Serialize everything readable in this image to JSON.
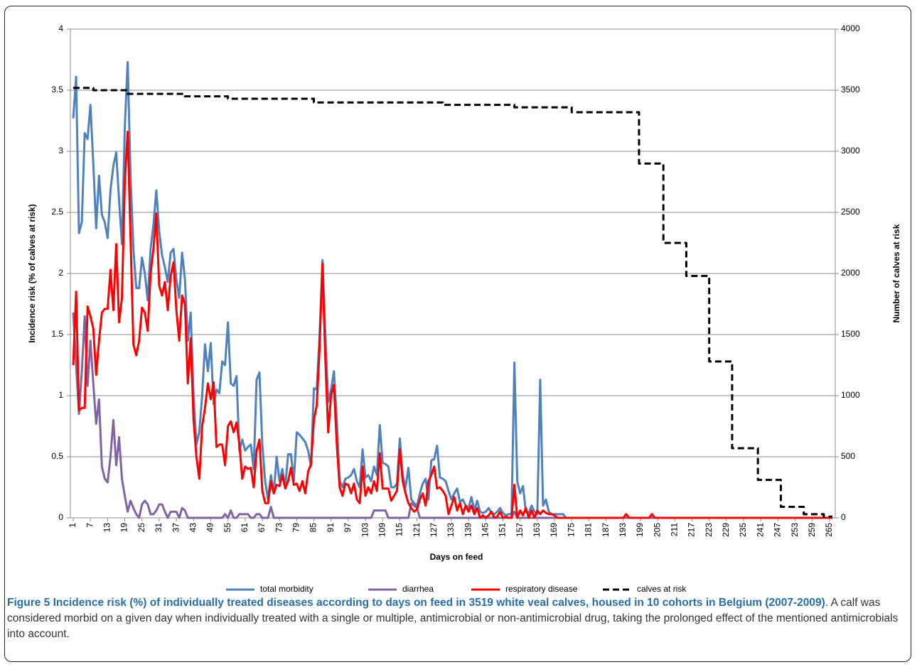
{
  "chart_data": {
    "type": "line",
    "x_label": "Days on feed",
    "y_label": "Incidence risk (% of calves at risk)",
    "y2_label": "Number of calves at risk",
    "xlim": [
      0,
      267
    ],
    "xticks": [
      1,
      7,
      13,
      19,
      25,
      31,
      37,
      43,
      49,
      55,
      61,
      67,
      73,
      79,
      85,
      91,
      97,
      103,
      109,
      115,
      121,
      127,
      133,
      139,
      145,
      151,
      157,
      163,
      169,
      175,
      181,
      187,
      193,
      199,
      205,
      211,
      217,
      223,
      229,
      235,
      241,
      247,
      253,
      259,
      265
    ],
    "ylim": [
      0,
      4
    ],
    "yticks": [
      0,
      0.5,
      1,
      1.5,
      2,
      2.5,
      3,
      3.5,
      4
    ],
    "y2lim": [
      0,
      4000
    ],
    "y2ticks": [
      0,
      500,
      1000,
      1500,
      2000,
      2500,
      3000,
      3500,
      4000
    ],
    "grid": true,
    "legend": "bottom",
    "series": [
      {
        "name": "total morbidity",
        "color": "#4f81bd",
        "x": [
          1,
          2,
          3,
          4,
          5,
          6,
          7,
          8,
          9,
          10,
          11,
          12,
          13,
          14,
          15,
          16,
          17,
          18,
          19,
          20,
          21,
          22,
          23,
          24,
          25,
          26,
          27,
          28,
          29,
          30,
          31,
          32,
          33,
          34,
          35,
          36,
          37,
          38,
          39,
          40,
          41,
          42,
          43,
          44,
          45,
          46,
          47,
          48,
          49,
          50,
          51,
          52,
          53,
          54,
          55,
          56,
          57,
          58,
          59,
          60,
          61,
          62,
          63,
          64,
          65,
          66,
          67,
          68,
          69,
          70,
          71,
          72,
          73,
          74,
          75,
          76,
          77,
          78,
          79,
          80,
          81,
          82,
          83,
          84,
          85,
          86,
          87,
          88,
          89,
          90,
          91,
          92,
          93,
          94,
          95,
          96,
          97,
          98,
          99,
          100,
          101,
          102,
          103,
          104,
          105,
          106,
          107,
          108,
          109,
          110,
          111,
          112,
          113,
          114,
          115,
          116,
          117,
          118,
          119,
          120,
          121,
          122,
          123,
          124,
          125,
          126,
          127,
          128,
          129,
          130,
          131,
          132,
          133,
          134,
          135,
          136,
          137,
          138,
          139,
          140,
          141,
          142,
          143,
          144,
          145,
          146,
          147,
          148,
          149,
          150,
          151,
          152,
          153,
          154,
          155,
          156,
          157,
          158,
          159,
          160,
          161,
          162,
          163,
          164,
          165,
          166,
          167,
          168,
          169,
          170,
          171,
          172,
          173,
          174,
          266
        ],
        "values": [
          3.27,
          3.61,
          2.33,
          2.42,
          3.15,
          3.1,
          3.38,
          2.9,
          2.37,
          2.8,
          2.48,
          2.42,
          2.29,
          2.68,
          2.88,
          2.99,
          2.6,
          2.24,
          3.2,
          3.73,
          2.8,
          2.2,
          1.88,
          1.88,
          2.13,
          2.0,
          1.78,
          2.2,
          2.4,
          2.68,
          2.35,
          2.15,
          2.05,
          1.93,
          2.17,
          2.2,
          1.95,
          1.8,
          2.17,
          1.95,
          1.45,
          1.68,
          1.0,
          0.6,
          0.7,
          1.0,
          1.42,
          1.2,
          1.43,
          0.93,
          1.05,
          1.02,
          1.28,
          1.25,
          1.6,
          1.1,
          1.08,
          1.16,
          0.55,
          0.64,
          0.55,
          0.58,
          0.6,
          0.4,
          1.13,
          1.19,
          0.6,
          0.3,
          0.15,
          0.35,
          0.2,
          0.5,
          0.3,
          0.4,
          0.25,
          0.52,
          0.52,
          0.3,
          0.7,
          0.68,
          0.65,
          0.62,
          0.55,
          0.42,
          1.06,
          1.05,
          1.5,
          2.11,
          1.5,
          0.95,
          1.05,
          1.2,
          0.8,
          0.3,
          0.25,
          0.32,
          0.33,
          0.35,
          0.4,
          0.3,
          0.25,
          0.56,
          0.33,
          0.35,
          0.3,
          0.42,
          0.35,
          0.76,
          0.45,
          0.44,
          0.42,
          0.25,
          0.25,
          0.28,
          0.65,
          0.35,
          0.25,
          0.41,
          0.15,
          0.12,
          0.1,
          0.2,
          0.28,
          0.32,
          0.15,
          0.47,
          0.48,
          0.59,
          0.33,
          0.32,
          0.3,
          0.22,
          0.15,
          0.2,
          0.24,
          0.13,
          0.15,
          0.1,
          0.08,
          0.17,
          0.06,
          0.14,
          0.05,
          0.04,
          0.05,
          0.08,
          0.04,
          0.03,
          0.05,
          0.08,
          0.04,
          0.02,
          0.03,
          0.03,
          1.27,
          0.3,
          0.2,
          0.26,
          0.05,
          0.04,
          0.1,
          0.05,
          0.03,
          1.13,
          0.1,
          0.15,
          0.05,
          0.03,
          0.03,
          0.03,
          0.03,
          0.03,
          0,
          0,
          0
        ]
      },
      {
        "name": "diarrhea",
        "color": "#8064a2",
        "x": [
          1,
          2,
          3,
          4,
          5,
          6,
          7,
          8,
          9,
          10,
          11,
          12,
          13,
          14,
          15,
          16,
          17,
          18,
          19,
          20,
          21,
          22,
          23,
          24,
          25,
          26,
          27,
          28,
          29,
          30,
          31,
          32,
          33,
          34,
          35,
          36,
          37,
          38,
          39,
          40,
          41,
          53,
          54,
          55,
          56,
          57,
          58,
          59,
          60,
          61,
          62,
          63,
          64,
          65,
          66,
          67,
          69,
          70,
          71,
          105,
          106,
          107,
          108,
          109,
          110,
          111,
          118,
          119,
          120,
          121,
          122,
          154,
          155,
          156,
          266
        ],
        "values": [
          1.68,
          1.25,
          0.85,
          1.2,
          1.65,
          1.08,
          1.45,
          1.1,
          0.77,
          0.97,
          0.42,
          0.32,
          0.29,
          0.5,
          0.8,
          0.43,
          0.66,
          0.32,
          0.18,
          0.05,
          0.14,
          0.08,
          0.03,
          0,
          0.11,
          0.14,
          0.11,
          0.03,
          0.03,
          0.06,
          0.11,
          0.11,
          0.05,
          0,
          0.05,
          0.05,
          0.05,
          0,
          0.08,
          0.06,
          0,
          0,
          0.03,
          0,
          0.06,
          0,
          0,
          0.03,
          0.03,
          0.03,
          0.03,
          0,
          0,
          0.03,
          0.03,
          0,
          0,
          0.09,
          0,
          0,
          0.06,
          0.06,
          0.06,
          0.06,
          0.06,
          0,
          0,
          0.12,
          0.1,
          0.08,
          0,
          0,
          0.05,
          0,
          0
        ]
      },
      {
        "name": "respiratory disease",
        "color": "#ff0000",
        "x": [
          1,
          2,
          3,
          4,
          5,
          6,
          7,
          8,
          9,
          10,
          11,
          12,
          13,
          14,
          15,
          16,
          17,
          18,
          19,
          20,
          21,
          22,
          23,
          24,
          25,
          26,
          27,
          28,
          29,
          30,
          31,
          32,
          33,
          34,
          35,
          36,
          37,
          38,
          39,
          40,
          41,
          42,
          43,
          44,
          45,
          46,
          47,
          48,
          49,
          50,
          51,
          52,
          53,
          54,
          55,
          56,
          57,
          58,
          59,
          60,
          61,
          62,
          63,
          64,
          65,
          66,
          67,
          68,
          69,
          70,
          71,
          72,
          73,
          74,
          75,
          76,
          77,
          78,
          79,
          80,
          81,
          82,
          83,
          84,
          85,
          86,
          87,
          88,
          89,
          90,
          91,
          92,
          93,
          94,
          95,
          96,
          97,
          98,
          99,
          100,
          101,
          102,
          103,
          104,
          105,
          106,
          107,
          108,
          109,
          110,
          111,
          112,
          113,
          114,
          115,
          116,
          117,
          118,
          119,
          120,
          121,
          122,
          123,
          124,
          125,
          126,
          127,
          128,
          129,
          130,
          131,
          132,
          133,
          134,
          135,
          136,
          137,
          138,
          139,
          140,
          141,
          142,
          143,
          144,
          145,
          146,
          147,
          148,
          149,
          150,
          151,
          152,
          153,
          154,
          155,
          156,
          157,
          158,
          159,
          160,
          161,
          162,
          163,
          164,
          165,
          166,
          167,
          168,
          169,
          170,
          193,
          194,
          195,
          202,
          203,
          204,
          266
        ],
        "values": [
          1.25,
          1.85,
          0.88,
          0.9,
          0.9,
          1.73,
          1.65,
          1.55,
          1.17,
          1.45,
          1.68,
          1.71,
          1.71,
          2.03,
          1.7,
          2.24,
          1.6,
          1.8,
          2.75,
          3.16,
          2.3,
          1.42,
          1.33,
          1.45,
          1.72,
          1.68,
          1.53,
          2.0,
          2.2,
          2.49,
          1.9,
          1.82,
          1.93,
          1.7,
          1.98,
          2.09,
          1.7,
          1.45,
          1.82,
          1.75,
          1.1,
          1.47,
          0.8,
          0.5,
          0.32,
          0.75,
          0.9,
          1.1,
          0.97,
          1.11,
          0.58,
          0.6,
          0.6,
          0.43,
          0.75,
          0.79,
          0.7,
          0.78,
          0.6,
          0.32,
          0.42,
          0.4,
          0.41,
          0.25,
          0.55,
          0.64,
          0.22,
          0.12,
          0.12,
          0.3,
          0.2,
          0.27,
          0.26,
          0.35,
          0.24,
          0.3,
          0.41,
          0.27,
          0.28,
          0.22,
          0.3,
          0.2,
          0.38,
          0.44,
          0.8,
          0.92,
          1.4,
          2.08,
          1.3,
          0.7,
          1.0,
          1.09,
          0.6,
          0.25,
          0.18,
          0.28,
          0.27,
          0.2,
          0.28,
          0.15,
          0.12,
          0.42,
          0.18,
          0.25,
          0.2,
          0.3,
          0.22,
          0.53,
          0.24,
          0.24,
          0.24,
          0.14,
          0.18,
          0.22,
          0.56,
          0.3,
          0.2,
          0.12,
          0.08,
          0.05,
          0.07,
          0.15,
          0.2,
          0.1,
          0.3,
          0.35,
          0.42,
          0.24,
          0.25,
          0.22,
          0.18,
          0.03,
          0.1,
          0.17,
          0.06,
          0.12,
          0.03,
          0.1,
          0.05,
          0.1,
          0.03,
          0.08,
          0,
          0.02,
          0,
          0.02,
          0.05,
          0,
          0.01,
          0.05,
          0,
          0.01,
          0,
          0,
          0.27,
          0,
          0.06,
          0.02,
          0.08,
          0,
          0.06,
          0,
          0.06,
          0.03,
          0.06,
          0.04,
          0.03,
          0.03,
          0.02,
          0,
          0,
          0.03,
          0,
          0,
          0.03,
          0,
          0
        ]
      },
      {
        "name": "calves at risk",
        "color": "#000000",
        "dash": true,
        "axis": "y2",
        "x": [
          1,
          8,
          8,
          20,
          20,
          40,
          40,
          55,
          55,
          85,
          85,
          130,
          130,
          155,
          155,
          175,
          175,
          198.5,
          198.5,
          207,
          207,
          215,
          215,
          223,
          223,
          231,
          231,
          240,
          240,
          248,
          248,
          256,
          256,
          263,
          263,
          266
        ],
        "values": [
          3519,
          3519,
          3500,
          3500,
          3470,
          3470,
          3450,
          3450,
          3430,
          3430,
          3400,
          3400,
          3380,
          3380,
          3360,
          3360,
          3320,
          3320,
          2900,
          2900,
          2250,
          2250,
          1980,
          1980,
          1280,
          1280,
          570,
          570,
          310,
          310,
          90,
          90,
          30,
          30,
          10,
          10
        ]
      }
    ]
  },
  "caption": {
    "bold": "Figure 5 Incidence risk (%) of individually treated diseases according to days on feed in 3519 white veal calves, housed in 10 cohorts in Belgium (2007-2009)",
    "text": ". A calf was considered morbid on a given day when individually treated with a single or multiple, antimicrobial or non-antimicrobial drug, taking the prolonged effect of the mentioned antimicrobials into account."
  }
}
